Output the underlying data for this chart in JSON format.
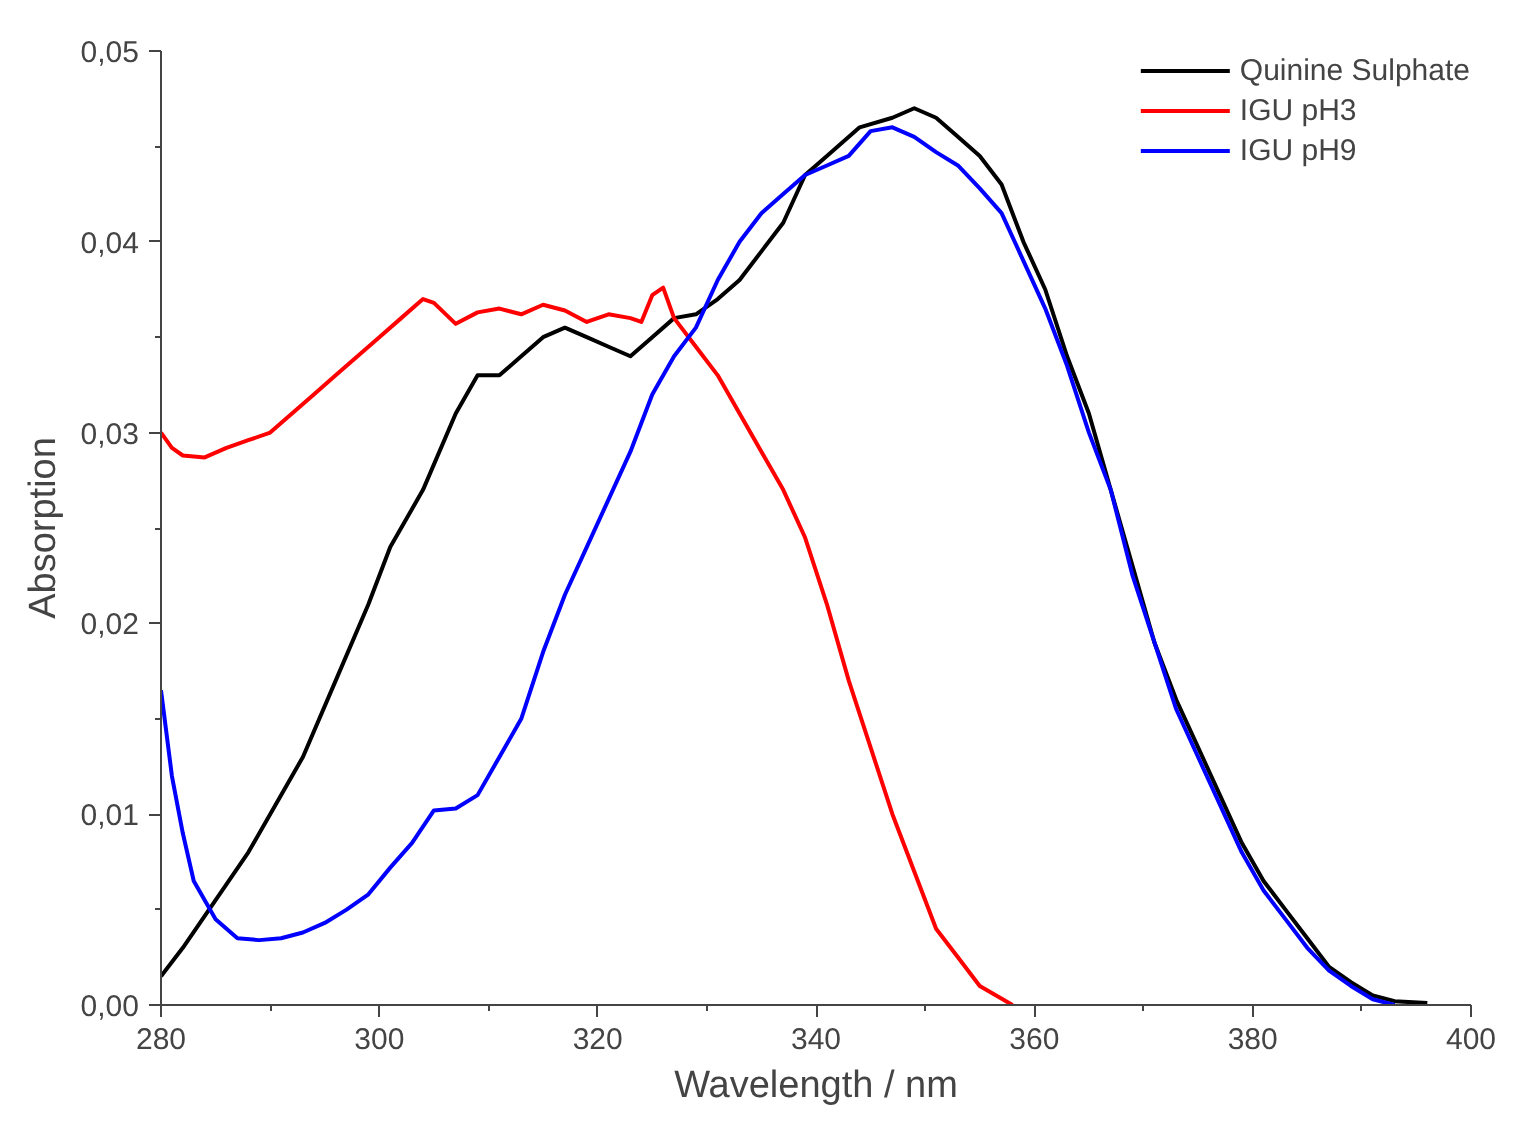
{
  "chart_data": {
    "type": "line",
    "xlabel": "Wavelength / nm",
    "ylabel": "Absorption",
    "xlim": [
      280,
      400
    ],
    "ylim": [
      0,
      0.05
    ],
    "xticks": [
      280,
      {
        "value": 290,
        "label": null
      },
      300,
      {
        "value": 310,
        "label": null
      },
      320,
      {
        "value": 330,
        "label": null
      },
      340,
      {
        "value": 350,
        "label": null
      },
      360,
      {
        "value": 370,
        "label": null
      },
      380,
      {
        "value": 390,
        "label": null
      },
      400
    ],
    "yticks": [
      {
        "value": 0,
        "label": "0,00"
      },
      {
        "value": 0.005,
        "label": null
      },
      {
        "value": 0.01,
        "label": "0,01"
      },
      {
        "value": 0.015,
        "label": null
      },
      {
        "value": 0.02,
        "label": "0,02"
      },
      {
        "value": 0.025,
        "label": null
      },
      {
        "value": 0.03,
        "label": "0,03"
      },
      {
        "value": 0.035,
        "label": null
      },
      {
        "value": 0.04,
        "label": "0,04"
      },
      {
        "value": 0.045,
        "label": null
      },
      {
        "value": 0.05,
        "label": "0,05"
      }
    ],
    "grid": false,
    "legend": "top right",
    "marker": "none",
    "line_style": "solid",
    "series": [
      {
        "name": "Quinine Sulphate",
        "color": "#000000",
        "x": [
          280,
          282,
          285,
          288,
          290,
          293,
          296,
          299,
          301,
          304,
          307,
          309,
          311,
          313,
          315,
          317,
          319,
          321,
          323,
          325,
          327,
          329,
          331,
          333,
          335,
          337,
          339,
          341,
          344,
          347,
          349,
          351,
          353,
          355,
          357,
          359,
          361,
          363,
          365,
          367,
          369,
          371,
          373,
          375,
          377,
          379,
          381,
          383,
          385,
          387,
          389,
          391,
          393,
          396
        ],
        "values": [
          0.0015,
          0.003,
          0.0055,
          0.008,
          0.01,
          0.013,
          0.017,
          0.021,
          0.024,
          0.027,
          0.031,
          0.033,
          0.033,
          0.034,
          0.035,
          0.0355,
          0.035,
          0.0345,
          0.034,
          0.035,
          0.036,
          0.0362,
          0.037,
          0.038,
          0.0395,
          0.041,
          0.0435,
          0.0445,
          0.046,
          0.0465,
          0.047,
          0.0465,
          0.0455,
          0.0445,
          0.043,
          0.04,
          0.0375,
          0.034,
          0.031,
          0.027,
          0.023,
          0.019,
          0.016,
          0.0135,
          0.011,
          0.0085,
          0.0065,
          0.005,
          0.0035,
          0.002,
          0.0012,
          0.0005,
          0.0002,
          0.0001
        ]
      },
      {
        "name": "IGU pH3",
        "color": "#ff0000",
        "x": [
          280,
          281,
          282,
          284,
          286,
          288,
          290,
          292,
          294,
          296,
          298,
          300,
          302,
          304,
          305,
          307,
          309,
          311,
          313,
          315,
          317,
          319,
          321,
          323,
          324,
          325,
          326,
          327,
          329,
          331,
          333,
          335,
          337,
          339,
          341,
          343,
          345,
          347,
          349,
          351,
          353,
          355,
          358
        ],
        "values": [
          0.03,
          0.0292,
          0.0288,
          0.0287,
          0.0292,
          0.0296,
          0.03,
          0.031,
          0.032,
          0.033,
          0.034,
          0.035,
          0.036,
          0.037,
          0.0368,
          0.0357,
          0.0363,
          0.0365,
          0.0362,
          0.0367,
          0.0364,
          0.0358,
          0.0362,
          0.036,
          0.0358,
          0.0372,
          0.0376,
          0.036,
          0.0345,
          0.033,
          0.031,
          0.029,
          0.027,
          0.0245,
          0.021,
          0.017,
          0.0135,
          0.01,
          0.007,
          0.004,
          0.0025,
          0.001,
          0.0
        ]
      },
      {
        "name": "IGU pH9",
        "color": "#0000ff",
        "x": [
          280,
          281,
          282,
          283,
          285,
          287,
          289,
          291,
          293,
          295,
          297,
          299,
          301,
          303,
          305,
          307,
          309,
          311,
          313,
          315,
          317,
          319,
          321,
          323,
          325,
          327,
          329,
          331,
          333,
          335,
          337,
          339,
          341,
          343,
          345,
          347,
          349,
          351,
          353,
          355,
          357,
          359,
          361,
          363,
          365,
          367,
          369,
          371,
          373,
          375,
          377,
          379,
          381,
          383,
          385,
          387,
          389,
          391,
          393
        ],
        "values": [
          0.0165,
          0.012,
          0.009,
          0.0065,
          0.0045,
          0.0035,
          0.0034,
          0.0035,
          0.0038,
          0.0043,
          0.005,
          0.0058,
          0.0072,
          0.0085,
          0.0102,
          0.0103,
          0.011,
          0.013,
          0.015,
          0.0185,
          0.0215,
          0.024,
          0.0265,
          0.029,
          0.032,
          0.034,
          0.0355,
          0.038,
          0.04,
          0.0415,
          0.0425,
          0.0435,
          0.044,
          0.0445,
          0.0458,
          0.046,
          0.0455,
          0.0447,
          0.044,
          0.0428,
          0.0415,
          0.039,
          0.0365,
          0.0335,
          0.03,
          0.027,
          0.0225,
          0.019,
          0.0155,
          0.013,
          0.0105,
          0.008,
          0.006,
          0.0045,
          0.003,
          0.0018,
          0.001,
          0.0003,
          0.0
        ]
      }
    ]
  }
}
